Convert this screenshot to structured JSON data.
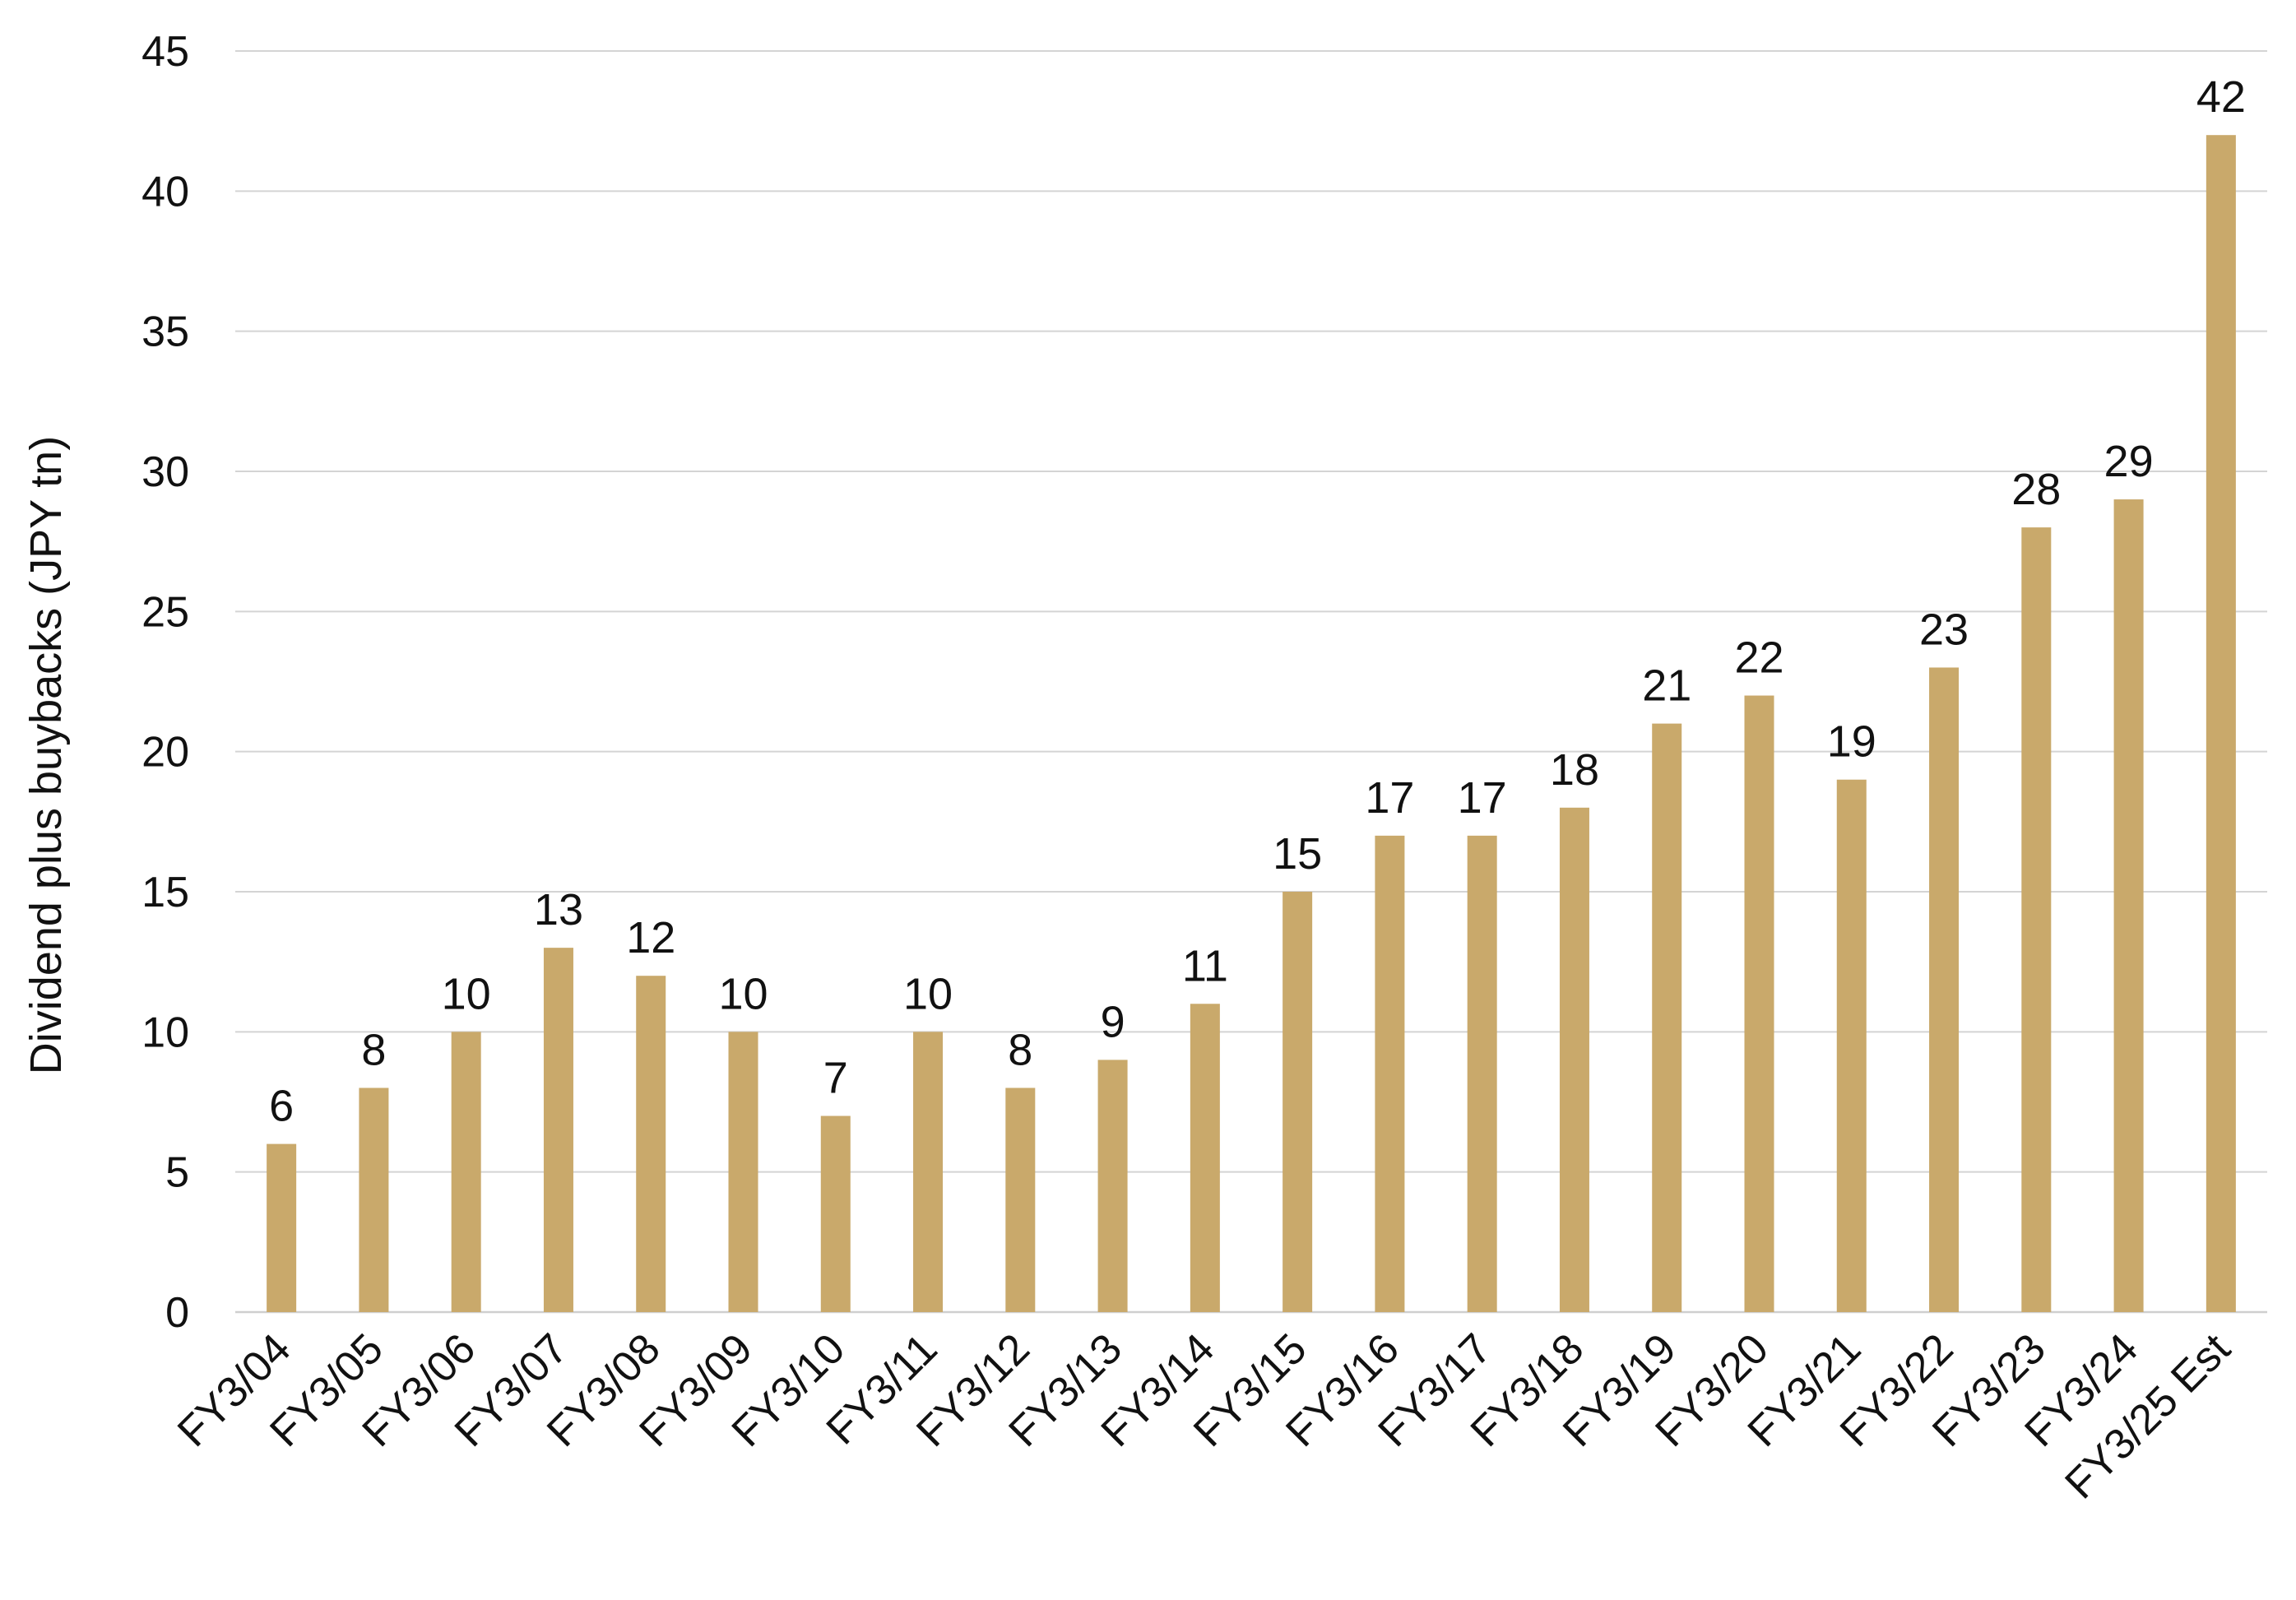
{
  "chart_data": {
    "type": "bar",
    "ylabel": "Dividend plus buybacks (JPY tn)",
    "xlabel": "",
    "ylim": [
      0,
      45
    ],
    "yticks": [
      0,
      5,
      10,
      15,
      20,
      25,
      30,
      35,
      40,
      45
    ],
    "grid": true,
    "legend": "none",
    "bar_color": "#c9a96b",
    "categories": [
      "FY3/04",
      "FY3/05",
      "FY3/06",
      "FY3/07",
      "FY3/08",
      "FY3/09",
      "FY3/10",
      "FY3/11",
      "FY3/12",
      "FY3/13",
      "FY3/14",
      "FY3/15",
      "FY3/16",
      "FY3/17",
      "FY3/18",
      "FY3/19",
      "FY3/20",
      "FY3/21",
      "FY3/22",
      "FY3/23",
      "FY3/24",
      "FY3/25 Est"
    ],
    "values": [
      6,
      8,
      10,
      13,
      12,
      10,
      7,
      10,
      8,
      9,
      11,
      15,
      17,
      17,
      18,
      21,
      22,
      19,
      23,
      28,
      29,
      42
    ],
    "data_labels": [
      "6",
      "8",
      "10",
      "13",
      "12",
      "10",
      "7",
      "10",
      "8",
      "9",
      "11",
      "15",
      "17",
      "17",
      "18",
      "21",
      "22",
      "19",
      "23",
      "28",
      "29",
      "42"
    ]
  }
}
